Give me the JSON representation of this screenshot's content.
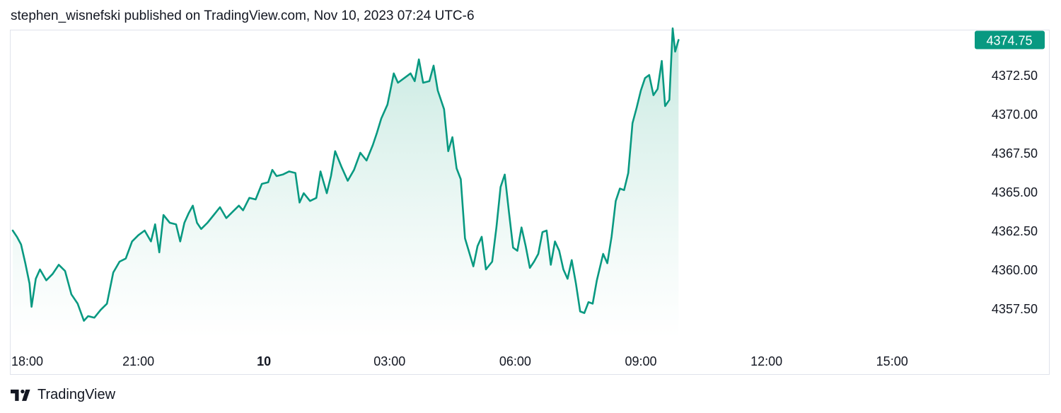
{
  "header": {
    "published_text": "stephen_wisnefski published on TradingView.com, Nov 10, 2023 07:24 UTC-6"
  },
  "footer": {
    "brand": "TradingView",
    "logo_icon": "tradingview-logo-icon"
  },
  "colors": {
    "line": "#089981",
    "area_top": "#bfe6dc",
    "area_bottom": "#ffffff",
    "price_tag_bg": "#089981",
    "text": "#131722"
  },
  "chart_data": {
    "type": "area",
    "current_price": "4374.75",
    "y_ticks": [
      {
        "value": 4372.5,
        "label": "4372.50"
      },
      {
        "value": 4370.0,
        "label": "4370.00"
      },
      {
        "value": 4367.5,
        "label": "4367.50"
      },
      {
        "value": 4365.0,
        "label": "4365.00"
      },
      {
        "value": 4362.5,
        "label": "4362.50"
      },
      {
        "value": 4360.0,
        "label": "4360.00"
      },
      {
        "value": 4357.5,
        "label": "4357.50"
      }
    ],
    "x_ticks": [
      {
        "hour": 0,
        "label": "18:00",
        "bold": false
      },
      {
        "hour": 3,
        "label": "21:00",
        "bold": false
      },
      {
        "hour": 6,
        "label": "10",
        "bold": true
      },
      {
        "hour": 9,
        "label": "03:00",
        "bold": false
      },
      {
        "hour": 12,
        "label": "06:00",
        "bold": false
      },
      {
        "hour": 15,
        "label": "09:00",
        "bold": false
      },
      {
        "hour": 18,
        "label": "12:00",
        "bold": false
      },
      {
        "hour": 21,
        "label": "15:00",
        "bold": false
      }
    ],
    "x_range_hours": [
      0,
      23.8
    ],
    "y_range": [
      4356.5,
      4376.4
    ],
    "grid": false,
    "legend": "none",
    "series": [
      {
        "points": [
          [
            0.0,
            4362.5
          ],
          [
            0.1,
            4362.1
          ],
          [
            0.2,
            4361.6
          ],
          [
            0.3,
            4360.4
          ],
          [
            0.4,
            4359.1
          ],
          [
            0.45,
            4357.6
          ],
          [
            0.55,
            4359.4
          ],
          [
            0.65,
            4360.0
          ],
          [
            0.8,
            4359.3
          ],
          [
            0.95,
            4359.7
          ],
          [
            1.1,
            4360.3
          ],
          [
            1.25,
            4359.9
          ],
          [
            1.4,
            4358.4
          ],
          [
            1.55,
            4357.8
          ],
          [
            1.7,
            4356.7
          ],
          [
            1.8,
            4357.0
          ],
          [
            1.95,
            4356.9
          ],
          [
            2.1,
            4357.4
          ],
          [
            2.25,
            4357.8
          ],
          [
            2.4,
            4359.8
          ],
          [
            2.55,
            4360.5
          ],
          [
            2.7,
            4360.7
          ],
          [
            2.85,
            4361.8
          ],
          [
            3.0,
            4362.2
          ],
          [
            3.15,
            4362.5
          ],
          [
            3.3,
            4361.8
          ],
          [
            3.4,
            4362.9
          ],
          [
            3.5,
            4361.1
          ],
          [
            3.6,
            4363.5
          ],
          [
            3.75,
            4363.0
          ],
          [
            3.9,
            4362.9
          ],
          [
            4.0,
            4361.8
          ],
          [
            4.1,
            4363.0
          ],
          [
            4.2,
            4363.6
          ],
          [
            4.3,
            4364.1
          ],
          [
            4.4,
            4363.0
          ],
          [
            4.5,
            4362.6
          ],
          [
            4.65,
            4363.0
          ],
          [
            4.8,
            4363.5
          ],
          [
            4.95,
            4364.0
          ],
          [
            5.1,
            4363.3
          ],
          [
            5.25,
            4363.7
          ],
          [
            5.4,
            4364.1
          ],
          [
            5.5,
            4363.8
          ],
          [
            5.65,
            4364.6
          ],
          [
            5.8,
            4364.5
          ],
          [
            5.95,
            4365.5
          ],
          [
            6.1,
            4365.6
          ],
          [
            6.2,
            4366.4
          ],
          [
            6.3,
            4366.0
          ],
          [
            6.45,
            4366.1
          ],
          [
            6.6,
            4366.3
          ],
          [
            6.75,
            4366.2
          ],
          [
            6.85,
            4364.3
          ],
          [
            6.95,
            4364.9
          ],
          [
            7.1,
            4364.4
          ],
          [
            7.25,
            4364.6
          ],
          [
            7.35,
            4366.3
          ],
          [
            7.5,
            4364.9
          ],
          [
            7.6,
            4366.0
          ],
          [
            7.7,
            4367.6
          ],
          [
            7.85,
            4366.6
          ],
          [
            8.0,
            4365.7
          ],
          [
            8.15,
            4366.4
          ],
          [
            8.3,
            4367.5
          ],
          [
            8.45,
            4367.0
          ],
          [
            8.6,
            4368.0
          ],
          [
            8.7,
            4368.8
          ],
          [
            8.8,
            4369.7
          ],
          [
            8.95,
            4370.6
          ],
          [
            9.1,
            4372.6
          ],
          [
            9.2,
            4372.0
          ],
          [
            9.35,
            4372.3
          ],
          [
            9.5,
            4372.6
          ],
          [
            9.6,
            4372.1
          ],
          [
            9.7,
            4373.5
          ],
          [
            9.8,
            4372.0
          ],
          [
            9.95,
            4372.1
          ],
          [
            10.05,
            4373.1
          ],
          [
            10.15,
            4371.5
          ],
          [
            10.3,
            4370.3
          ],
          [
            10.4,
            4367.6
          ],
          [
            10.5,
            4368.5
          ],
          [
            10.6,
            4366.5
          ],
          [
            10.7,
            4365.8
          ],
          [
            10.8,
            4362.0
          ],
          [
            10.9,
            4361.1
          ],
          [
            11.0,
            4360.2
          ],
          [
            11.1,
            4361.5
          ],
          [
            11.2,
            4362.1
          ],
          [
            11.3,
            4360.0
          ],
          [
            11.45,
            4360.5
          ],
          [
            11.55,
            4362.7
          ],
          [
            11.65,
            4365.3
          ],
          [
            11.75,
            4366.1
          ],
          [
            11.85,
            4363.7
          ],
          [
            11.95,
            4361.4
          ],
          [
            12.05,
            4361.2
          ],
          [
            12.15,
            4362.7
          ],
          [
            12.25,
            4361.5
          ],
          [
            12.35,
            4360.1
          ],
          [
            12.45,
            4360.5
          ],
          [
            12.55,
            4361.0
          ],
          [
            12.65,
            4362.4
          ],
          [
            12.75,
            4362.5
          ],
          [
            12.85,
            4360.3
          ],
          [
            12.95,
            4361.8
          ],
          [
            13.05,
            4361.2
          ],
          [
            13.15,
            4360.0
          ],
          [
            13.25,
            4359.4
          ],
          [
            13.35,
            4360.6
          ],
          [
            13.45,
            4359.1
          ],
          [
            13.55,
            4357.3
          ],
          [
            13.65,
            4357.2
          ],
          [
            13.75,
            4357.9
          ],
          [
            13.85,
            4357.8
          ],
          [
            13.95,
            4359.3
          ],
          [
            14.1,
            4361.0
          ],
          [
            14.2,
            4360.4
          ],
          [
            14.3,
            4362.1
          ],
          [
            14.4,
            4364.4
          ],
          [
            14.5,
            4365.2
          ],
          [
            14.6,
            4365.1
          ],
          [
            14.7,
            4366.2
          ],
          [
            14.8,
            4369.4
          ],
          [
            14.9,
            4370.4
          ],
          [
            15.0,
            4371.5
          ],
          [
            15.1,
            4372.3
          ],
          [
            15.2,
            4372.5
          ],
          [
            15.3,
            4371.2
          ],
          [
            15.4,
            4371.6
          ],
          [
            15.5,
            4373.4
          ],
          [
            15.58,
            4370.5
          ],
          [
            15.68,
            4370.9
          ],
          [
            15.76,
            4375.5
          ],
          [
            15.82,
            4374.0
          ],
          [
            15.9,
            4374.75
          ]
        ]
      }
    ]
  }
}
